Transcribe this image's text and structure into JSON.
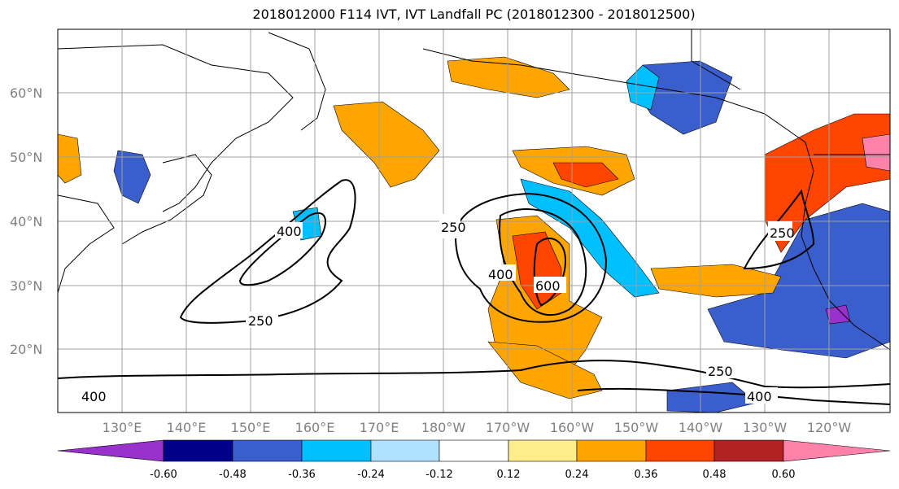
{
  "title": "2018012000 F114 IVT, IVT Landfall PC (2018012300 - 2018012500)",
  "lat_labels": [
    "60°N",
    "50°N",
    "40°N",
    "30°N",
    "20°N"
  ],
  "lon_labels": [
    "130°E",
    "140°E",
    "150°E",
    "160°E",
    "170°E",
    "180°W",
    "170°W",
    "160°W",
    "150°W",
    "140°W",
    "130°W",
    "120°W"
  ],
  "contour_labels": [
    "400",
    "250",
    "250",
    "400",
    "600",
    "250",
    "400",
    "400",
    "250"
  ],
  "colorbar": {
    "colors": [
      "#9932cc",
      "#00008b",
      "#3a5fcd",
      "#00bfff",
      "#b0e2ff",
      "#ffffff",
      "#ffec8b",
      "#ffa500",
      "#ff4500",
      "#b22222",
      "#ff82ab"
    ],
    "ticks": [
      "-0.60",
      "-0.48",
      "-0.36",
      "-0.24",
      "-0.12",
      "0.12",
      "0.24",
      "0.36",
      "0.48",
      "0.60"
    ]
  }
}
